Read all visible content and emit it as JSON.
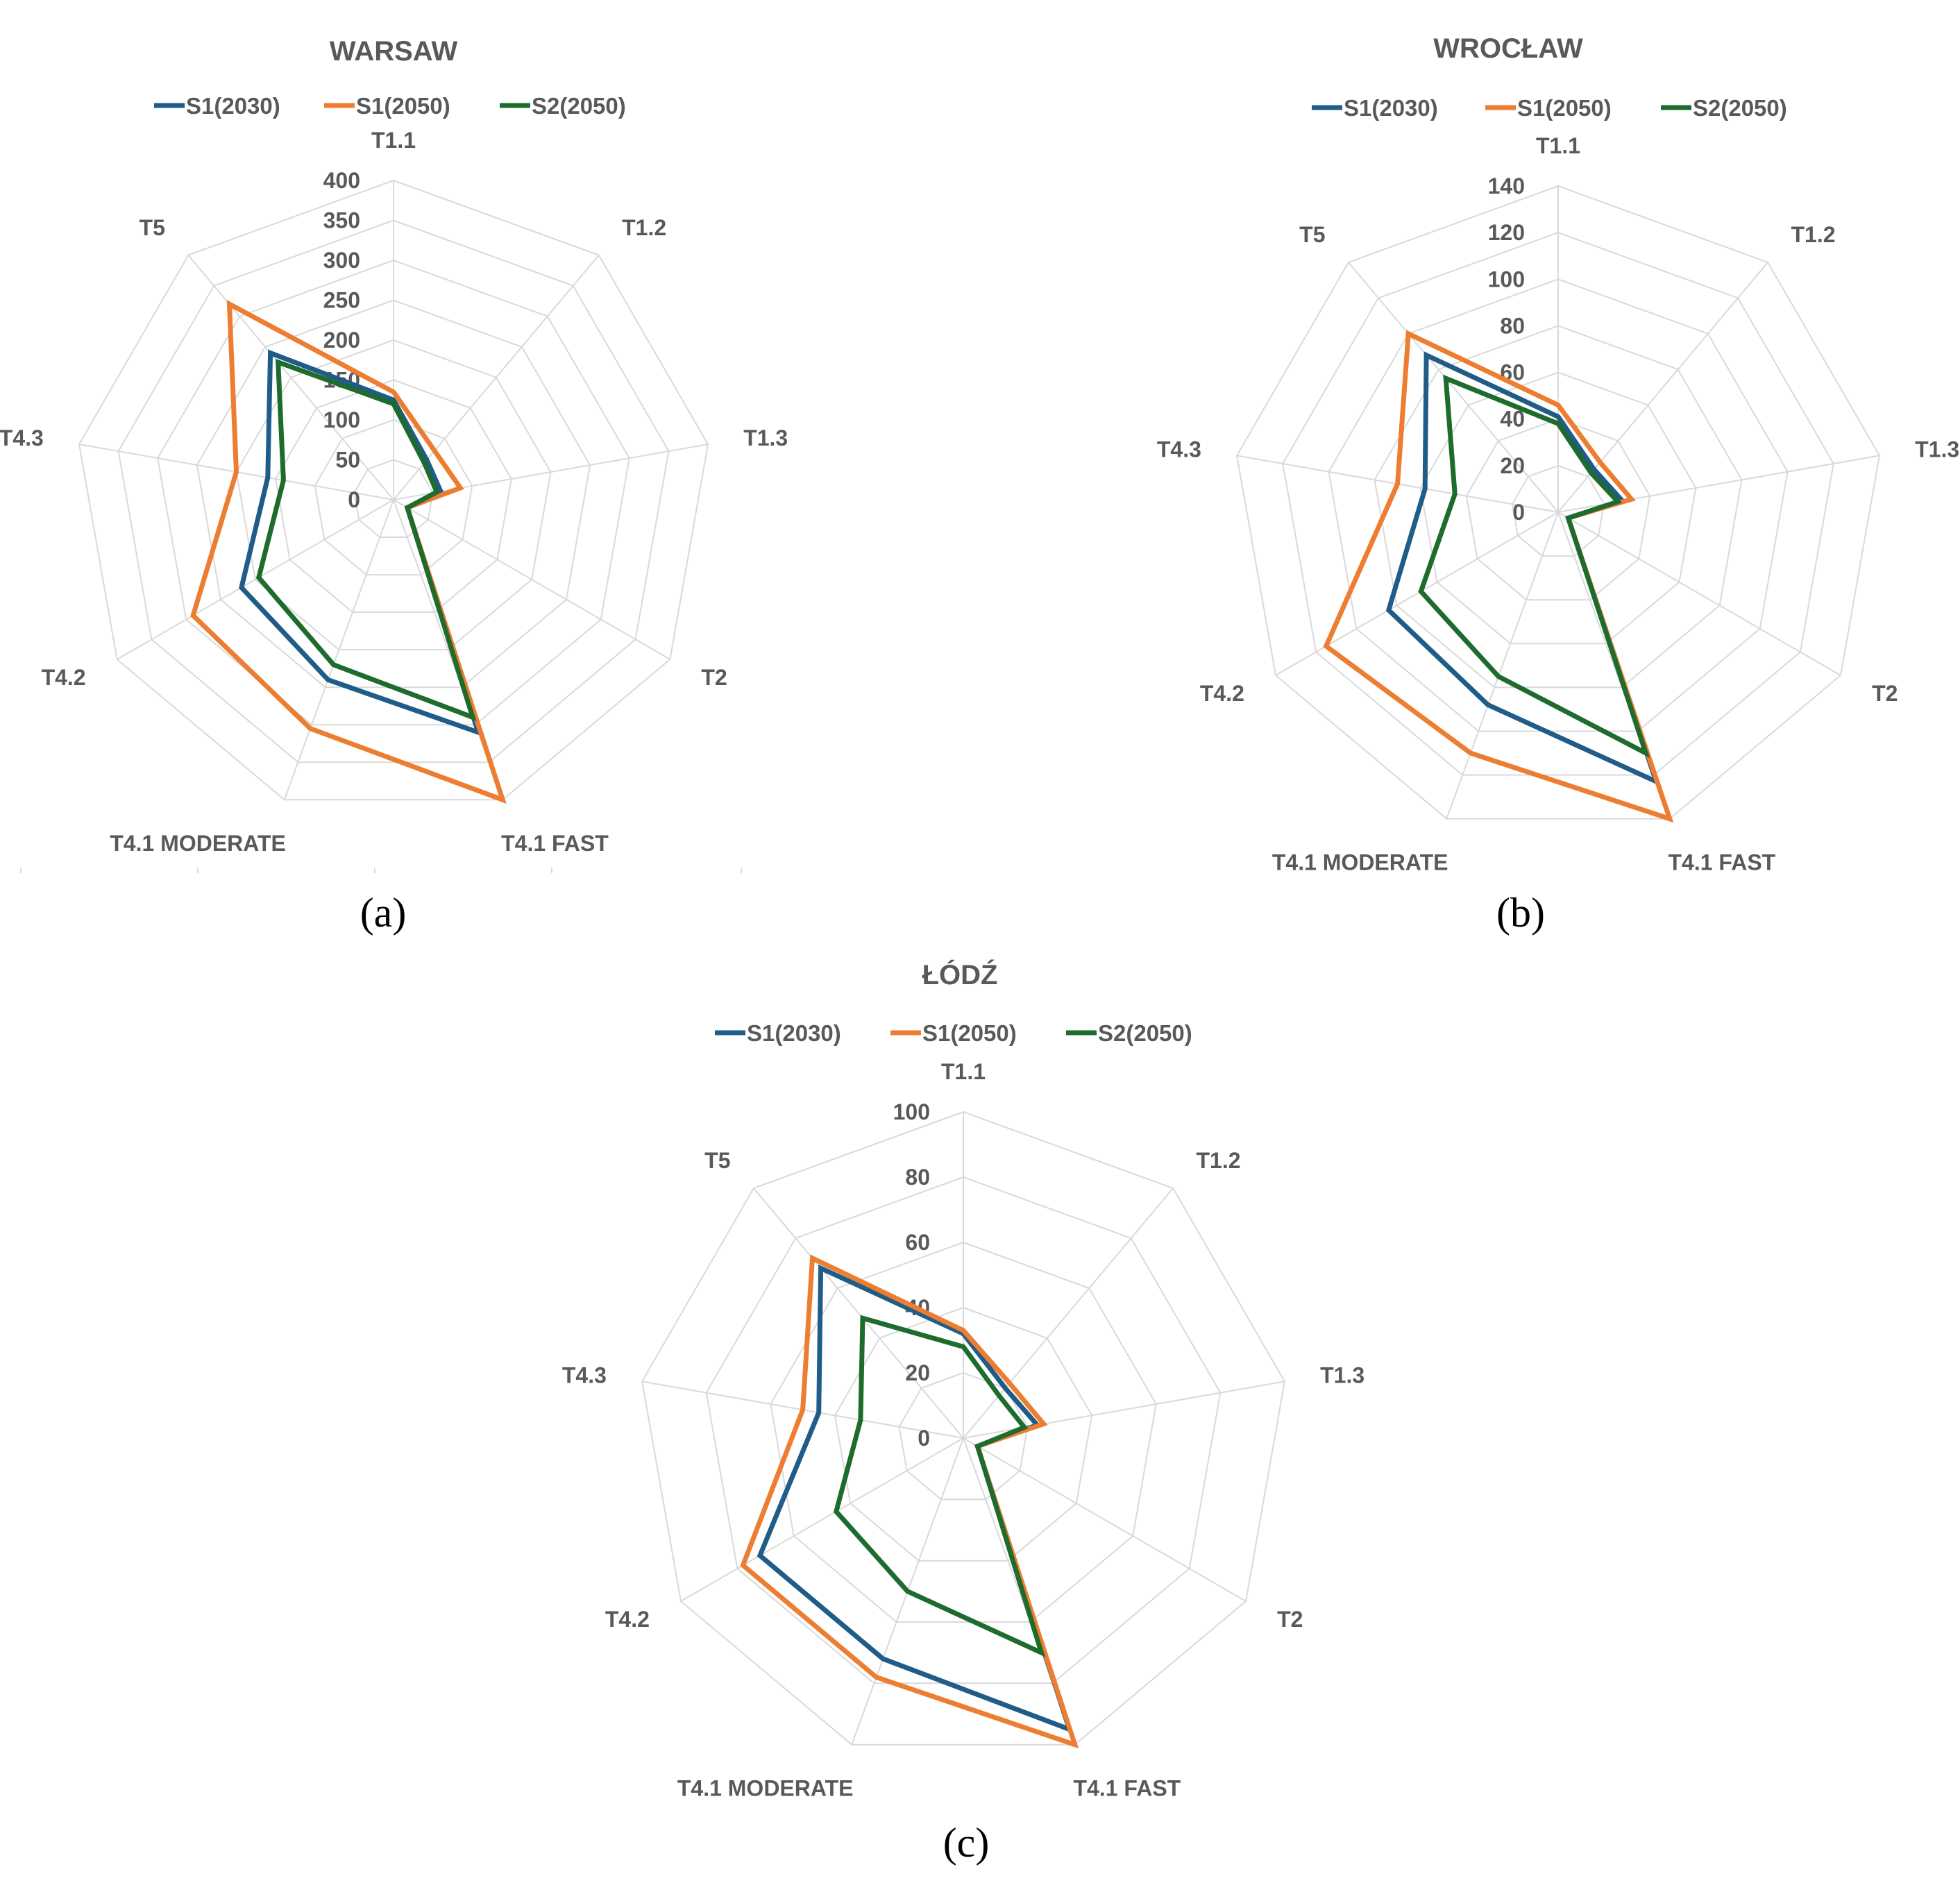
{
  "chart_data": [
    {
      "type": "radar",
      "title": "WARSAW",
      "caption": "(a)",
      "categories": [
        "T1.1",
        "T1.2",
        "T1.3",
        "T2",
        "T4.1 FAST",
        "T4.1 MODERATE",
        "T4.2",
        "T4.3",
        "T5"
      ],
      "ticks": [
        "0",
        "50",
        "100",
        "150",
        "200",
        "250",
        "300",
        "350",
        "400"
      ],
      "rlim": [
        0,
        400
      ],
      "legend_position": "top",
      "series": [
        {
          "name": "S1(2030)",
          "color": "#1f5c87",
          "values": [
            125,
            65,
            60,
            20,
            310,
            240,
            220,
            160,
            240
          ]
        },
        {
          "name": "S1(2050)",
          "color": "#ed7d31",
          "values": [
            135,
            80,
            85,
            20,
            400,
            305,
            290,
            200,
            320
          ]
        },
        {
          "name": "S2(2050)",
          "color": "#1e6b2e",
          "values": [
            120,
            60,
            55,
            20,
            290,
            220,
            195,
            140,
            225
          ]
        }
      ]
    },
    {
      "type": "radar",
      "title": "WROCŁAW",
      "caption": "(b)",
      "categories": [
        "T1.1",
        "T1.2",
        "T1.3",
        "T2",
        "T4.1 FAST",
        "T4.1 MODERATE",
        "T4.2",
        "T4.3",
        "T5"
      ],
      "ticks": [
        "0",
        "20",
        "40",
        "60",
        "80",
        "100",
        "120",
        "140"
      ],
      "rlim": [
        0,
        140
      ],
      "legend_position": "top",
      "series": [
        {
          "name": "S1(2030)",
          "color": "#1f5c87",
          "values": [
            41,
            24,
            28,
            5,
            123,
            88,
            84,
            58,
            88
          ]
        },
        {
          "name": "S1(2050)",
          "color": "#ed7d31",
          "values": [
            46,
            28,
            32,
            5,
            140,
            110,
            115,
            70,
            100
          ]
        },
        {
          "name": "S2(2050)",
          "color": "#1e6b2e",
          "values": [
            38,
            22,
            26,
            5,
            110,
            75,
            68,
            45,
            75
          ]
        }
      ]
    },
    {
      "type": "radar",
      "title": "ŁÓDŹ",
      "caption": "(c)",
      "categories": [
        "T1.1",
        "T1.2",
        "T1.3",
        "T2",
        "T4.1 FAST",
        "T4.1 MODERATE",
        "T4.2",
        "T4.3",
        "T5"
      ],
      "ticks": [
        "0",
        "20",
        "40",
        "60",
        "80",
        "100"
      ],
      "rlim": [
        0,
        100
      ],
      "legend_position": "top",
      "series": [
        {
          "name": "S1(2030)",
          "color": "#1f5c87",
          "values": [
            32,
            20,
            23,
            5,
            95,
            72,
            72,
            45,
            68
          ]
        },
        {
          "name": "S1(2050)",
          "color": "#ed7d31",
          "values": [
            33,
            22,
            25,
            5,
            100,
            78,
            78,
            50,
            72
          ]
        },
        {
          "name": "S2(2050)",
          "color": "#1e6b2e",
          "values": [
            28,
            17,
            19,
            5,
            70,
            50,
            45,
            32,
            48
          ]
        }
      ]
    }
  ]
}
